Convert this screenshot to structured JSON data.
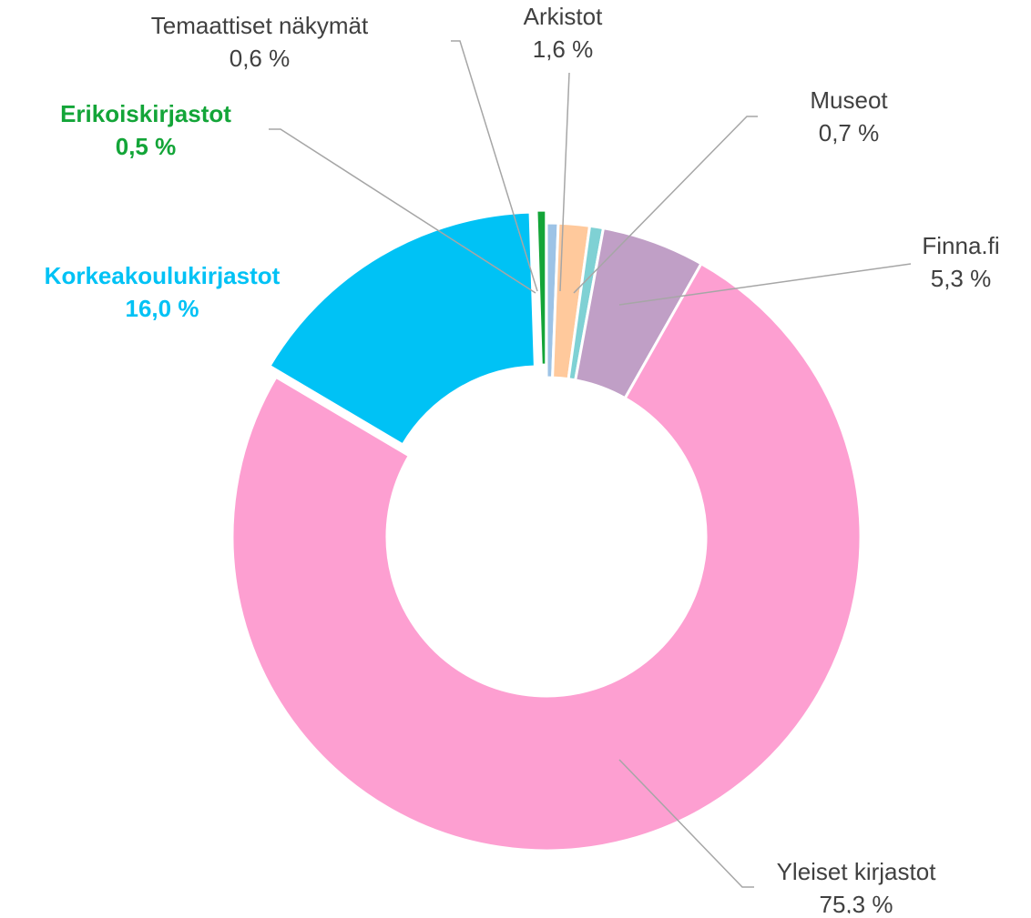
{
  "chart_data": {
    "type": "donut",
    "categories": [
      "Temaattiset näkymät",
      "Arkistot",
      "Museot",
      "Finna.fi",
      "Yleiset kirjastot",
      "Korkeakoulukirjastot",
      "Erikoiskirjastot"
    ],
    "values": [
      0.6,
      1.6,
      0.7,
      5.3,
      75.3,
      16.0,
      0.5
    ],
    "value_labels": [
      "0,6 %",
      "1,6 %",
      "0,7 %",
      "5,3 %",
      "75,3 %",
      "16,0 %",
      "0,5 %"
    ],
    "colors": [
      "#9dc3e6",
      "#ffc99c",
      "#7fd1d4",
      "#c09fc6",
      "#fd9fd1",
      "#00c2f5",
      "#13a538"
    ],
    "exploded": [
      false,
      false,
      false,
      false,
      false,
      true,
      true
    ]
  }
}
